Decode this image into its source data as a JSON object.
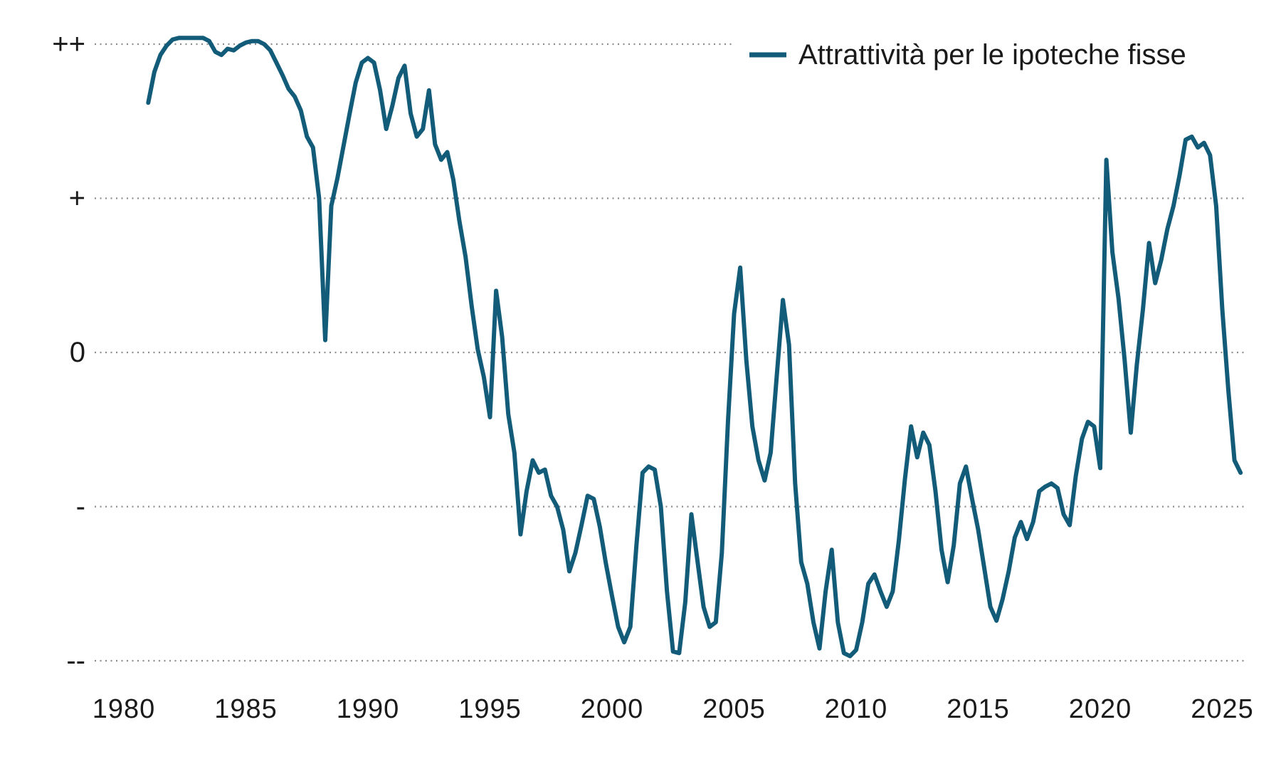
{
  "chart_data": {
    "type": "line",
    "title": "",
    "legend": "Attrattività per le ipoteche fisse",
    "xlabel": "",
    "ylabel": "",
    "grid": "dotted-horizontal",
    "legend_position": "top-right",
    "y_axis": {
      "kind": "qualitative",
      "ticks": [
        {
          "label": "++",
          "value": 2
        },
        {
          "label": "+",
          "value": 1
        },
        {
          "label": "0",
          "value": 0
        },
        {
          "label": "-",
          "value": -1
        },
        {
          "label": "--",
          "value": -2
        }
      ],
      "ylim": [
        -2.35,
        2.35
      ]
    },
    "x_axis": {
      "tick_labels": [
        "1980",
        "1985",
        "1990",
        "1995",
        "2000",
        "2005",
        "2010",
        "2015",
        "2020",
        "2025"
      ],
      "tick_values": [
        1980,
        1985,
        1990,
        1995,
        2000,
        2005,
        2010,
        2015,
        2020,
        2025
      ],
      "xlim": [
        1980,
        2026.3
      ]
    },
    "series": [
      {
        "name": "Attrattività per le ipoteche fisse",
        "frequency": "quarterly",
        "x_start": 1981.0,
        "x_step": 0.25,
        "values": [
          1.62,
          1.82,
          1.93,
          1.99,
          2.03,
          2.04,
          2.04,
          2.04,
          2.04,
          2.04,
          2.02,
          1.95,
          1.93,
          1.97,
          1.96,
          1.99,
          2.01,
          2.02,
          2.02,
          2.0,
          1.96,
          1.88,
          1.8,
          1.71,
          1.66,
          1.57,
          1.4,
          1.33,
          1.0,
          0.08,
          0.95,
          1.13,
          1.34,
          1.55,
          1.75,
          1.88,
          1.91,
          1.88,
          1.7,
          1.45,
          1.6,
          1.78,
          1.86,
          1.55,
          1.4,
          1.45,
          1.7,
          1.35,
          1.25,
          1.3,
          1.12,
          0.85,
          0.62,
          0.3,
          0.02,
          -0.16,
          -0.42,
          0.4,
          0.1,
          -0.4,
          -0.65,
          -1.18,
          -0.9,
          -0.7,
          -0.78,
          -0.76,
          -0.93,
          -1.0,
          -1.15,
          -1.42,
          -1.3,
          -1.12,
          -0.93,
          -0.95,
          -1.13,
          -1.37,
          -1.58,
          -1.78,
          -1.88,
          -1.78,
          -1.25,
          -0.78,
          -0.74,
          -0.76,
          -1.0,
          -1.55,
          -1.94,
          -1.95,
          -1.62,
          -1.05,
          -1.35,
          -1.65,
          -1.78,
          -1.75,
          -1.3,
          -0.45,
          0.25,
          0.55,
          -0.05,
          -0.48,
          -0.7,
          -0.83,
          -0.65,
          -0.15,
          0.34,
          0.05,
          -0.85,
          -1.36,
          -1.5,
          -1.75,
          -1.92,
          -1.55,
          -1.28,
          -1.75,
          -1.95,
          -1.97,
          -1.93,
          -1.75,
          -1.5,
          -1.44,
          -1.55,
          -1.65,
          -1.55,
          -1.22,
          -0.82,
          -0.48,
          -0.68,
          -0.52,
          -0.6,
          -0.9,
          -1.28,
          -1.49,
          -1.25,
          -0.85,
          -0.74,
          -0.95,
          -1.15,
          -1.4,
          -1.65,
          -1.74,
          -1.6,
          -1.42,
          -1.2,
          -1.1,
          -1.21,
          -1.1,
          -0.9,
          -0.87,
          -0.85,
          -0.88,
          -1.05,
          -1.12,
          -0.8,
          -0.56,
          -0.45,
          -0.48,
          -0.75,
          1.25,
          0.65,
          0.35,
          -0.05,
          -0.52,
          -0.08,
          0.28,
          0.71,
          0.45,
          0.6,
          0.8,
          0.95,
          1.15,
          1.38,
          1.4,
          1.33,
          1.36,
          1.28,
          0.95,
          0.28,
          -0.25,
          -0.7,
          -0.78
        ]
      }
    ],
    "colors": {
      "line": "#135C79",
      "grid": "#8C8C8C",
      "text": "#1A1A1A",
      "background": "#FFFFFF"
    }
  }
}
